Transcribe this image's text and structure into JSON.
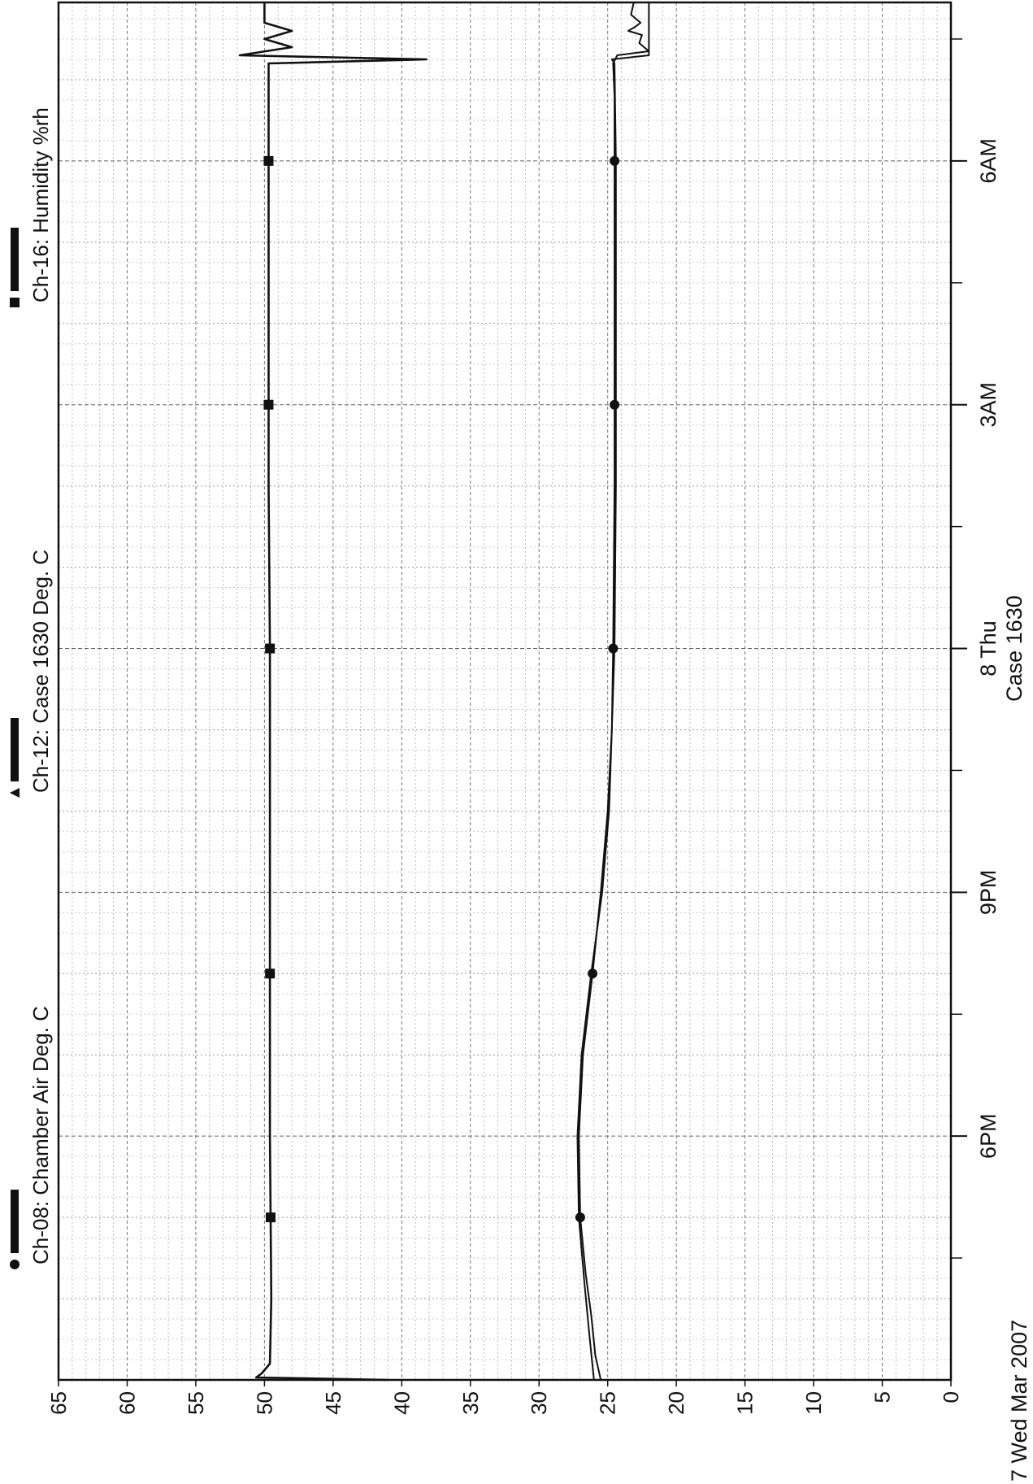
{
  "chart_data": {
    "type": "line",
    "orientation": "rotated-90-clockwise",
    "title": "",
    "xlabel": "Case 1630",
    "date_label": "7 Wed Mar 2007",
    "x_ticks": [
      {
        "label": "6PM",
        "hour": 18
      },
      {
        "label": "9PM",
        "hour": 21
      },
      {
        "label": "8 Thu",
        "hour": 24
      },
      {
        "label": "3AM",
        "hour": 27
      },
      {
        "label": "6AM",
        "hour": 30
      }
    ],
    "xlim": [
      15.0,
      31.95
    ],
    "ylim": [
      0,
      65
    ],
    "y_ticks": [
      0,
      5,
      10,
      15,
      20,
      25,
      30,
      35,
      40,
      45,
      50,
      55,
      60,
      65
    ],
    "grid": true,
    "legend_position": "top",
    "series": [
      {
        "name": "Ch-08: Chamber Air  Deg. C",
        "marker": "circle",
        "points": [
          [
            15.0,
            25.5
          ],
          [
            15.3,
            25.9
          ],
          [
            15.8,
            26.2
          ],
          [
            16.3,
            26.6
          ],
          [
            17.0,
            27.0
          ],
          [
            18.0,
            27.1
          ],
          [
            19.0,
            26.8
          ],
          [
            20.0,
            26.1
          ],
          [
            21.0,
            25.5
          ],
          [
            22.0,
            25.0
          ],
          [
            23.0,
            24.7
          ],
          [
            24.0,
            24.6
          ],
          [
            26.0,
            24.5
          ],
          [
            28.0,
            24.5
          ],
          [
            30.0,
            24.5
          ],
          [
            30.8,
            24.5
          ],
          [
            31.2,
            24.6
          ],
          [
            31.3,
            24.3
          ],
          [
            31.35,
            22.0
          ],
          [
            31.45,
            22.7
          ],
          [
            31.55,
            22.5
          ],
          [
            31.6,
            23.5
          ],
          [
            31.65,
            23.0
          ],
          [
            31.7,
            22.6
          ],
          [
            31.8,
            23.3
          ],
          [
            31.95,
            23.1
          ]
        ],
        "marker_hours": [
          17.0,
          20.0,
          24.0,
          27.0,
          30.0
        ]
      },
      {
        "name": "Ch-12: Case 1630  Deg. C",
        "marker": "triangle",
        "points": [
          [
            15.0,
            26.0
          ],
          [
            15.5,
            26.3
          ],
          [
            16.2,
            26.7
          ],
          [
            17.0,
            27.1
          ],
          [
            18.0,
            27.2
          ],
          [
            19.0,
            26.9
          ],
          [
            20.0,
            26.2
          ],
          [
            21.0,
            25.4
          ],
          [
            22.0,
            24.9
          ],
          [
            23.0,
            24.7
          ],
          [
            24.0,
            24.5
          ],
          [
            26.0,
            24.4
          ],
          [
            28.0,
            24.4
          ],
          [
            30.0,
            24.4
          ],
          [
            31.2,
            24.5
          ],
          [
            31.25,
            24.7
          ],
          [
            31.3,
            22.0
          ],
          [
            31.95,
            22.0
          ]
        ],
        "marker_hours": []
      },
      {
        "name": "Ch-16: Humidity %rh",
        "marker": "square",
        "points": [
          [
            15.0,
            41.0
          ],
          [
            15.03,
            50.6
          ],
          [
            15.08,
            50.2
          ],
          [
            15.2,
            49.6
          ],
          [
            16.0,
            49.5
          ],
          [
            18.0,
            49.6
          ],
          [
            20.0,
            49.6
          ],
          [
            22.0,
            49.6
          ],
          [
            24.0,
            49.6
          ],
          [
            26.0,
            49.7
          ],
          [
            28.0,
            49.7
          ],
          [
            30.0,
            49.7
          ],
          [
            31.2,
            49.7
          ],
          [
            31.25,
            38.2
          ],
          [
            31.3,
            51.8
          ],
          [
            31.4,
            48.0
          ],
          [
            31.5,
            50.0
          ],
          [
            31.6,
            48.0
          ],
          [
            31.7,
            50.0
          ],
          [
            31.95,
            50.0
          ]
        ],
        "marker_hours": [
          17.0,
          20.0,
          24.0,
          27.0,
          30.0
        ]
      }
    ]
  }
}
